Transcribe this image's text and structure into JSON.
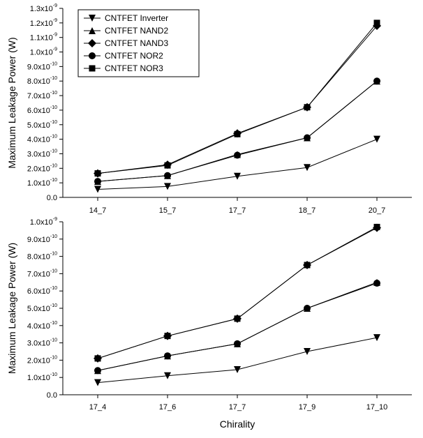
{
  "chart_data": [
    {
      "type": "line",
      "title": "",
      "xlabel": "",
      "ylabel": "Maximum Leakage Power (W)",
      "categories": [
        "14_7",
        "15_7",
        "17_7",
        "18_7",
        "20_7"
      ],
      "ylim": [
        0,
        1.3e-09
      ],
      "grid": false,
      "legend_position": "top-left",
      "y_tick_labels": [
        "0.0",
        "1.0x10-10",
        "2.0x10-10",
        "3.0x10-10",
        "4.0x10-10",
        "5.0x10-10",
        "6.0x10-10",
        "7.0x10-10",
        "8.0x10-10",
        "9.0x10-10",
        "1.0x10-9",
        "1.1x10-9",
        "1.2x10-9",
        "1.3x10-9"
      ],
      "series": [
        {
          "name": "CNTFET Inverter",
          "marker": "triangle-down",
          "values": [
            5.5e-11,
            7.5e-11,
            1.45e-10,
            2.05e-10,
            4e-10
          ]
        },
        {
          "name": "CNTFET NAND2",
          "marker": "triangle-up",
          "values": [
            1.1e-10,
            1.5e-10,
            2.95e-10,
            4.1e-10,
            8e-10
          ]
        },
        {
          "name": "CNTFET NAND3",
          "marker": "diamond",
          "values": [
            1.65e-10,
            2.25e-10,
            4.4e-10,
            6.2e-10,
            1.18e-09
          ]
        },
        {
          "name": "CNTFET NOR2",
          "marker": "circle",
          "values": [
            1.1e-10,
            1.5e-10,
            2.9e-10,
            4.1e-10,
            8e-10
          ]
        },
        {
          "name": "CNTFET NOR3",
          "marker": "square",
          "values": [
            1.65e-10,
            2.2e-10,
            4.35e-10,
            6.2e-10,
            1.2e-09
          ]
        }
      ]
    },
    {
      "type": "line",
      "title": "",
      "xlabel": "Chirality",
      "ylabel": "Maximum Leakage Power (W)",
      "categories": [
        "17_4",
        "17_6",
        "17_7",
        "17_9",
        "17_10"
      ],
      "ylim": [
        0,
        1e-09
      ],
      "grid": false,
      "y_tick_labels": [
        "0.0",
        "1.0x10-10",
        "2.0x10-10",
        "3.0x10-10",
        "4.0x10-10",
        "5.0x10-10",
        "6.0x10-10",
        "7.0x10-10",
        "8.0x10-10",
        "9.0x10-10",
        "1.0x10-9"
      ],
      "series": [
        {
          "marker": "triangle-down",
          "values": [
            7e-11,
            1.1e-10,
            1.45e-10,
            2.5e-10,
            3.3e-10
          ]
        },
        {
          "marker": "triangle-up",
          "values": [
            1.4e-10,
            2.25e-10,
            2.95e-10,
            5e-10,
            6.5e-10
          ]
        },
        {
          "marker": "diamond",
          "values": [
            2.1e-10,
            3.4e-10,
            4.4e-10,
            7.5e-10,
            9.65e-10
          ]
        },
        {
          "marker": "circle",
          "values": [
            1.4e-10,
            2.25e-10,
            2.95e-10,
            5e-10,
            6.45e-10
          ]
        },
        {
          "marker": "square",
          "values": [
            2.1e-10,
            3.4e-10,
            4.4e-10,
            7.5e-10,
            9.7e-10
          ]
        }
      ]
    }
  ]
}
